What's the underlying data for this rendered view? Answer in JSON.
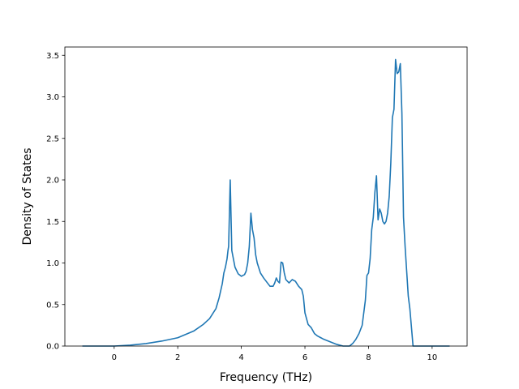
{
  "chart_data": {
    "type": "line",
    "title": "",
    "xlabel": "Frequency (THz)",
    "ylabel": "Density of States",
    "xlim": [
      -1.55,
      11.1
    ],
    "ylim": [
      0,
      3.6
    ],
    "grid": false,
    "x_ticks": [
      0,
      2,
      4,
      6,
      8,
      10
    ],
    "y_ticks": [
      0.0,
      0.5,
      1.0,
      1.5,
      2.0,
      2.5,
      3.0,
      3.5
    ],
    "x_tick_labels": [
      "0",
      "2",
      "4",
      "6",
      "8",
      "10"
    ],
    "y_tick_labels": [
      "0.0",
      "0.5",
      "1.0",
      "1.5",
      "2.0",
      "2.5",
      "3.0",
      "3.5"
    ],
    "series": [
      {
        "color": "#1f77b4",
        "x": [
          -1.0,
          -0.5,
          0.0,
          0.5,
          1.0,
          1.5,
          2.0,
          2.5,
          2.8,
          3.0,
          3.2,
          3.3,
          3.4,
          3.45,
          3.5,
          3.55,
          3.58,
          3.6,
          3.65,
          3.7,
          3.8,
          3.9,
          4.0,
          4.1,
          4.15,
          4.2,
          4.25,
          4.3,
          4.35,
          4.4,
          4.45,
          4.5,
          4.6,
          4.7,
          4.8,
          4.9,
          5.0,
          5.05,
          5.1,
          5.15,
          5.2,
          5.25,
          5.3,
          5.35,
          5.4,
          5.5,
          5.6,
          5.7,
          5.8,
          5.9,
          5.95,
          6.0,
          6.1,
          6.2,
          6.3,
          6.4,
          6.5,
          6.6,
          6.8,
          7.0,
          7.2,
          7.4,
          7.5,
          7.6,
          7.7,
          7.8,
          7.9,
          7.95,
          8.0,
          8.05,
          8.1,
          8.15,
          8.2,
          8.25,
          8.3,
          8.35,
          8.4,
          8.45,
          8.5,
          8.55,
          8.6,
          8.65,
          8.7,
          8.75,
          8.8,
          8.85,
          8.9,
          8.95,
          9.0,
          9.05,
          9.1,
          9.15,
          9.2,
          9.25,
          9.3,
          9.4,
          9.5,
          9.6,
          9.7,
          10.0,
          10.55
        ],
        "y": [
          0.0,
          0.0,
          0.0,
          0.01,
          0.03,
          0.06,
          0.1,
          0.18,
          0.26,
          0.33,
          0.45,
          0.58,
          0.75,
          0.88,
          0.95,
          1.05,
          1.15,
          1.2,
          2.0,
          1.15,
          0.95,
          0.87,
          0.84,
          0.86,
          0.9,
          1.0,
          1.2,
          1.6,
          1.4,
          1.3,
          1.1,
          1.0,
          0.88,
          0.82,
          0.77,
          0.72,
          0.72,
          0.76,
          0.82,
          0.78,
          0.76,
          1.01,
          1.0,
          0.88,
          0.8,
          0.76,
          0.8,
          0.78,
          0.72,
          0.68,
          0.6,
          0.4,
          0.26,
          0.22,
          0.15,
          0.12,
          0.1,
          0.08,
          0.05,
          0.02,
          0.0,
          0.0,
          0.03,
          0.08,
          0.15,
          0.25,
          0.55,
          0.85,
          0.88,
          1.05,
          1.4,
          1.55,
          1.85,
          2.05,
          1.52,
          1.65,
          1.6,
          1.5,
          1.47,
          1.5,
          1.6,
          1.8,
          2.2,
          2.75,
          2.85,
          3.45,
          3.28,
          3.3,
          3.4,
          2.8,
          1.55,
          1.2,
          0.9,
          0.6,
          0.45,
          0.0,
          0.0,
          0.0,
          0.0,
          0.0,
          0.0
        ]
      }
    ]
  }
}
